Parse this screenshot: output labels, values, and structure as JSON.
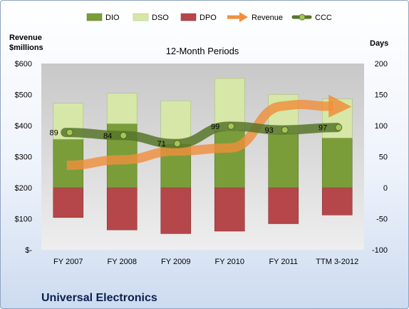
{
  "chart_data": {
    "type": "bar",
    "subtitle": "12-Month Periods",
    "company": "Universal Electronics",
    "categories": [
      "FY 2007",
      "FY 2008",
      "FY 2009",
      "FY 2010",
      "FY 2011",
      "TTM 3-2012"
    ],
    "left_axis": {
      "title_line1": "Revenue",
      "title_line2": "$millions",
      "ylim": [
        0,
        600
      ],
      "ticks": [
        0,
        100,
        200,
        300,
        400,
        500,
        600
      ],
      "tick_labels": [
        "$-",
        "$100",
        "$200",
        "$300",
        "$400",
        "$500",
        "$600"
      ]
    },
    "right_axis": {
      "title": "Days",
      "ylim": [
        -100,
        200
      ],
      "ticks": [
        -100,
        -50,
        0,
        50,
        100,
        150,
        200
      ],
      "tick_labels": [
        "-100",
        "-50",
        "0",
        "50",
        "100",
        "150",
        "200"
      ]
    },
    "series": [
      {
        "name": "DIO",
        "axis": "right",
        "color": "#7a9d3a",
        "values": [
          78,
          103,
          70,
          92,
          87,
          80
        ]
      },
      {
        "name": "DSO",
        "axis": "right",
        "color": "#d6e7a8",
        "values": [
          58,
          49,
          70,
          84,
          63,
          63
        ]
      },
      {
        "name": "DPO",
        "axis": "right",
        "color": "#b5474a",
        "values": [
          -48,
          -68,
          -74,
          -70,
          -58,
          -44
        ]
      },
      {
        "name": "Revenue",
        "axis": "left",
        "color": "#ef8f3c",
        "values": [
          272,
          290,
          318,
          328,
          463,
          463
        ]
      },
      {
        "name": "CCC",
        "axis": "right",
        "color": "#57752a",
        "values": [
          89,
          84,
          71,
          99,
          93,
          97
        ]
      }
    ],
    "data_labels": [
      "89",
      "84",
      "71",
      "99",
      "93",
      "97"
    ],
    "grid": false,
    "legend_position": "top"
  }
}
